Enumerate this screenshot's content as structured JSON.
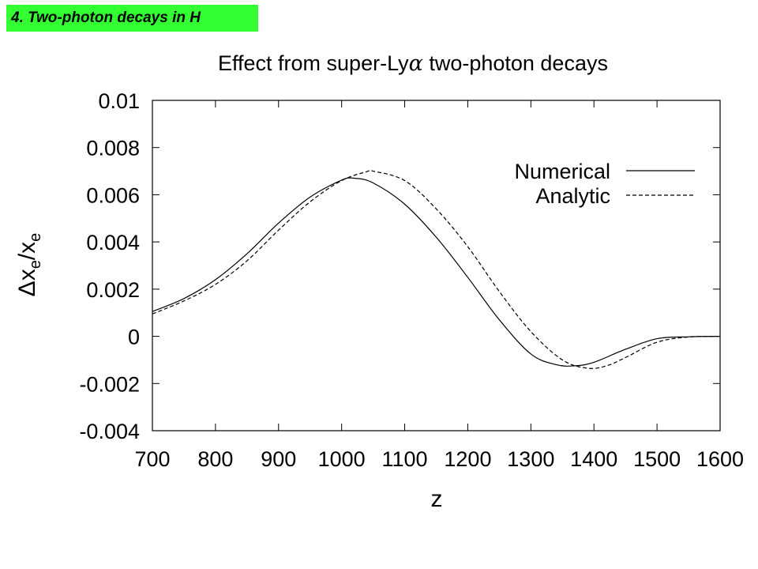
{
  "slide": {
    "section_tag": "4. Two-photon decays in H"
  },
  "chart_data": {
    "type": "line",
    "title_prefix": "Effect from super-Ly",
    "title_symbol": "α",
    "title_suffix": " two-photon decays",
    "xlabel": "z",
    "ylabel_delta": "Δ",
    "ylabel_x": "x",
    "ylabel_sub": "e",
    "ylabel_slash": "/x",
    "xlim": [
      700,
      1600
    ],
    "ylim": [
      -0.004,
      0.01
    ],
    "xticks": [
      700,
      800,
      900,
      1000,
      1100,
      1200,
      1300,
      1400,
      1500,
      1600
    ],
    "xtick_labels": [
      "700",
      "800",
      "900",
      "1000",
      "1100",
      "1200",
      "1300",
      "1400",
      "1500",
      "1600"
    ],
    "yticks": [
      -0.004,
      -0.002,
      0,
      0.002,
      0.004,
      0.006,
      0.008,
      0.01
    ],
    "ytick_labels": [
      "-0.004",
      "-0.002",
      "0",
      "0.002",
      "0.004",
      "0.006",
      "0.008",
      "0.01"
    ],
    "grid": false,
    "legend_position": "top-right",
    "series": [
      {
        "name": "Numerical",
        "style": "solid",
        "color": "#000000",
        "x": [
          700,
          750,
          800,
          850,
          900,
          950,
          1000,
          1020,
          1050,
          1100,
          1150,
          1200,
          1250,
          1300,
          1340,
          1370,
          1400,
          1450,
          1500,
          1550,
          1600
        ],
        "y": [
          0.00105,
          0.0016,
          0.0024,
          0.0035,
          0.0048,
          0.0059,
          0.00662,
          0.0067,
          0.0065,
          0.0056,
          0.0042,
          0.0025,
          0.0007,
          -0.00075,
          -0.0012,
          -0.00125,
          -0.0011,
          -0.00055,
          -0.0001,
          -2e-05,
          0.0
        ]
      },
      {
        "name": "Analytic",
        "style": "dashed",
        "color": "#000000",
        "x": [
          700,
          750,
          800,
          850,
          900,
          950,
          1000,
          1040,
          1050,
          1100,
          1150,
          1200,
          1250,
          1300,
          1350,
          1390,
          1420,
          1450,
          1500,
          1550,
          1600
        ],
        "y": [
          0.00095,
          0.0015,
          0.0022,
          0.0032,
          0.0045,
          0.0057,
          0.0066,
          0.00698,
          0.007,
          0.0066,
          0.0054,
          0.0038,
          0.0019,
          0.0002,
          -0.001,
          -0.00135,
          -0.00125,
          -0.0009,
          -0.00025,
          -3e-05,
          0.0
        ]
      }
    ]
  }
}
